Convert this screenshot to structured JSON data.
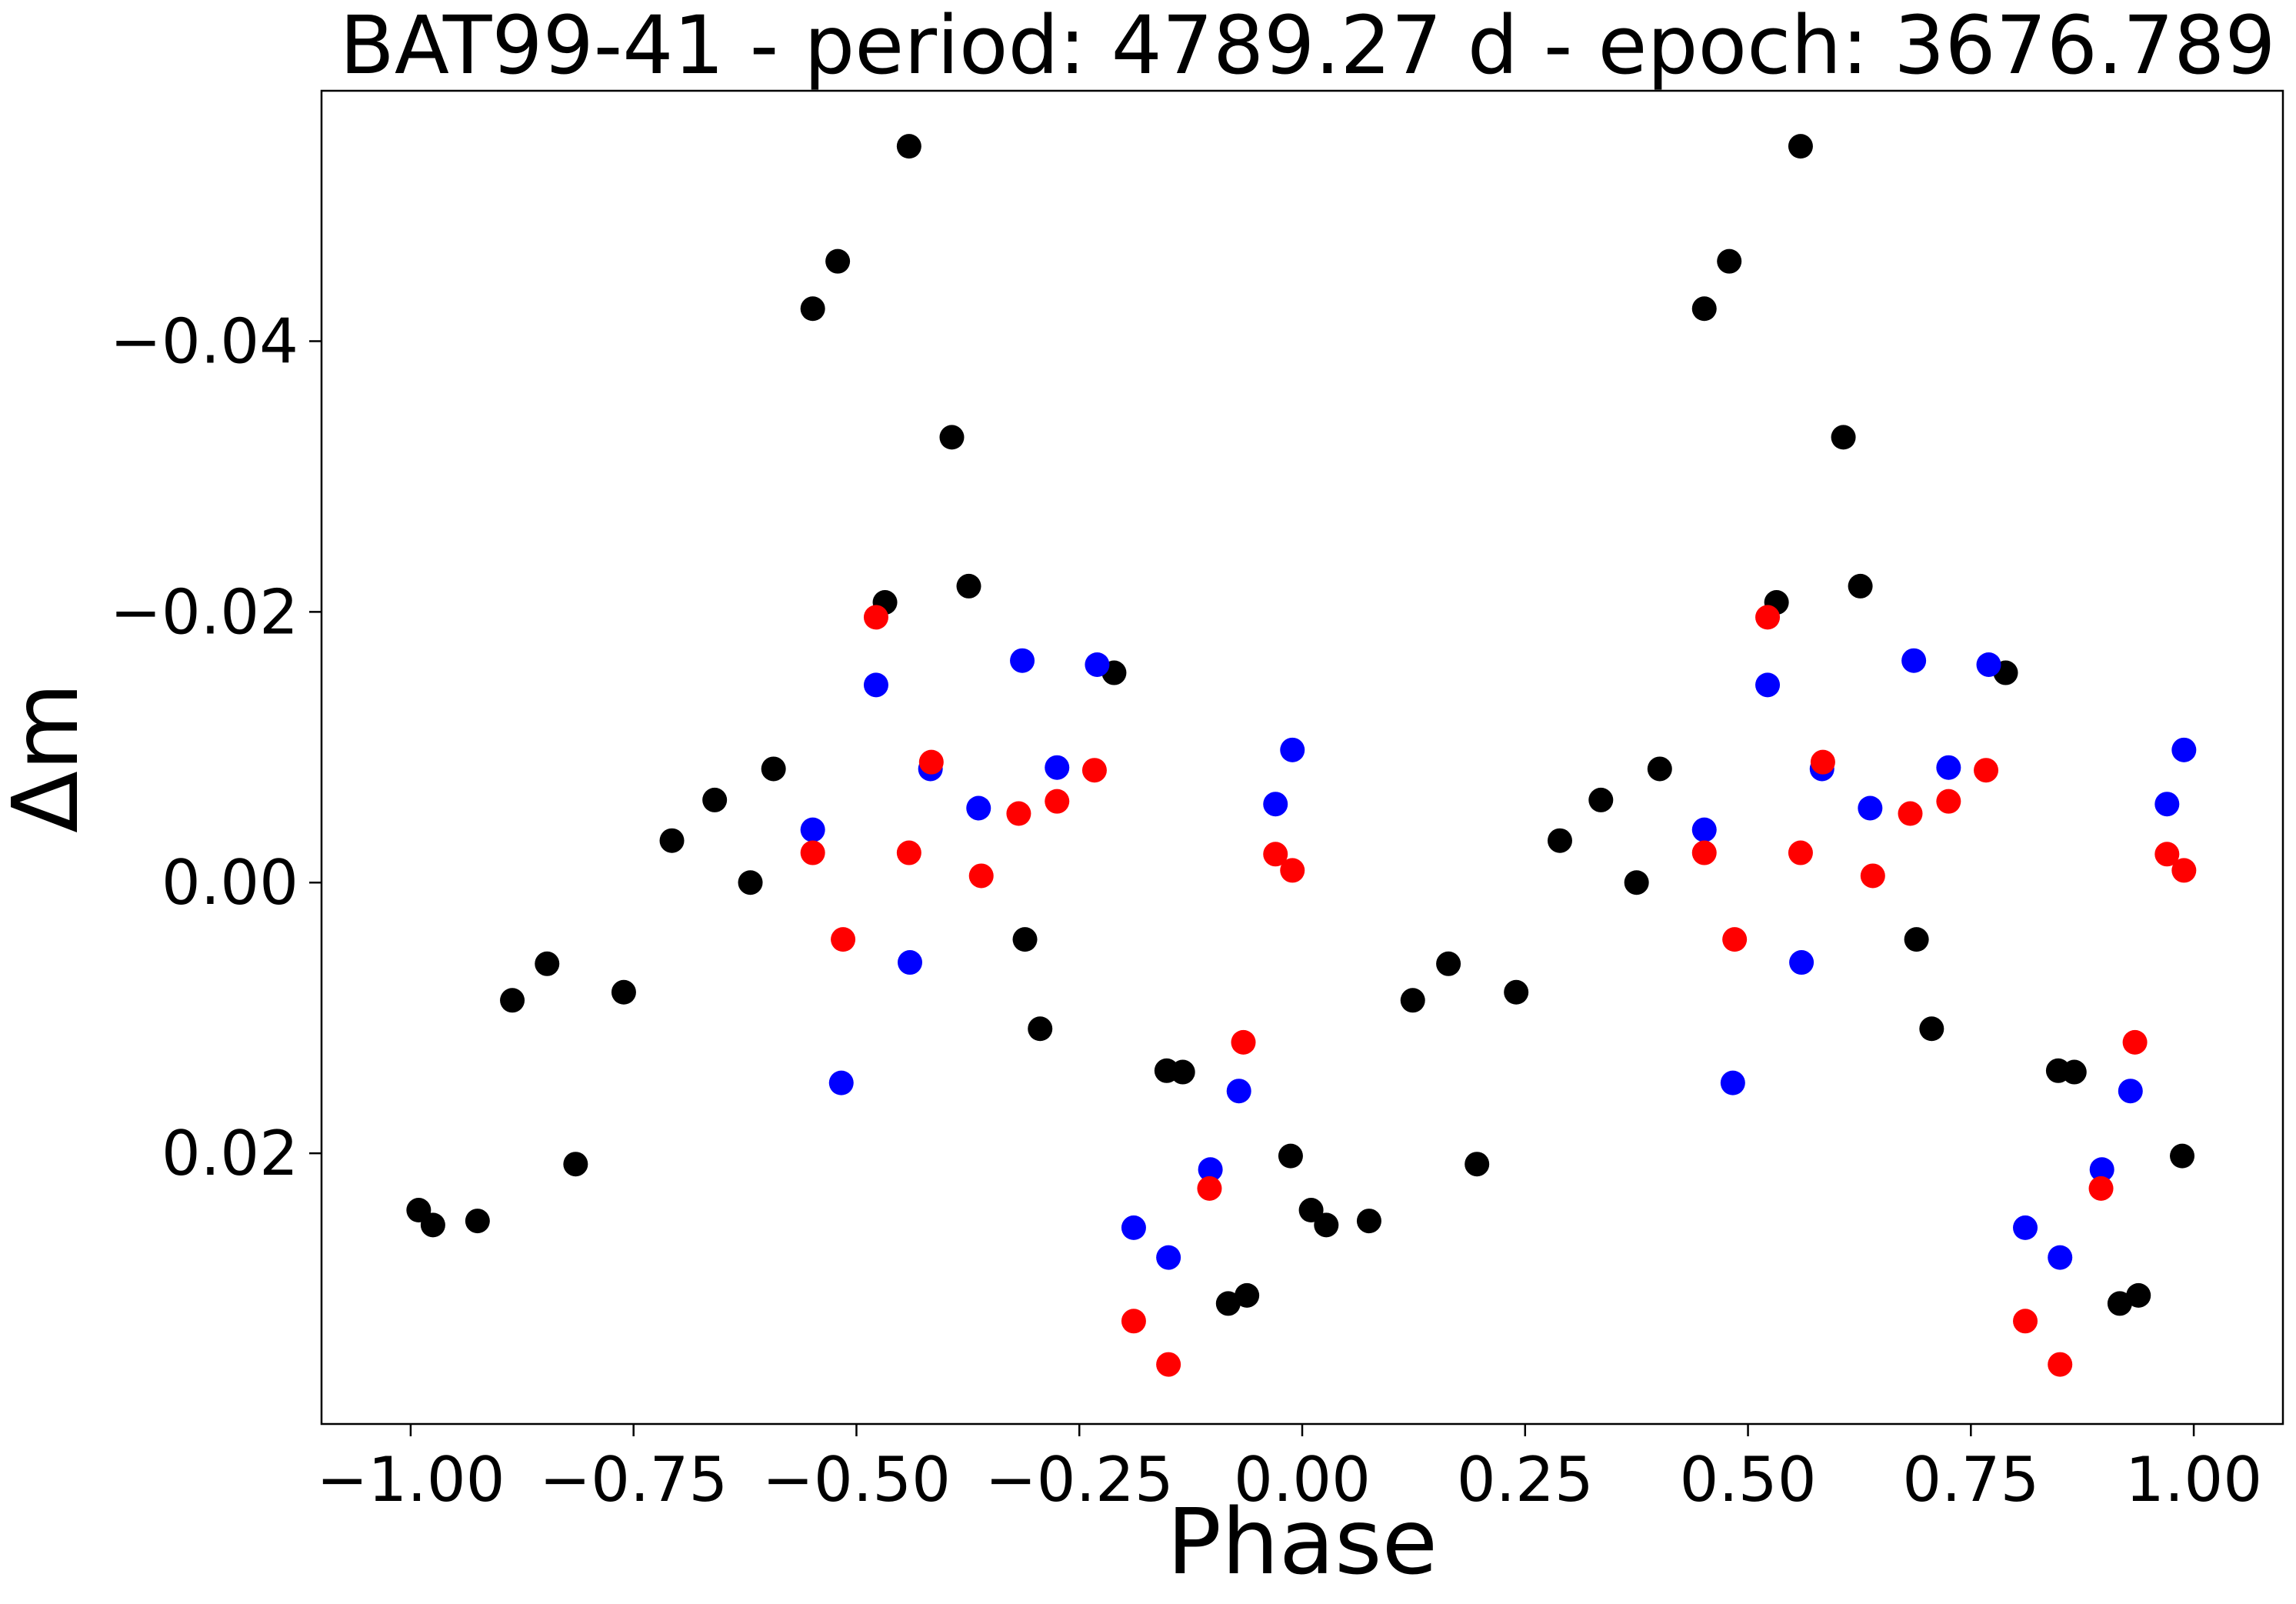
{
  "chart_data": {
    "type": "scatter",
    "title": "BAT99-41 - period: 4789.27 d - epoch: 3676.789",
    "xlabel": "Phase",
    "ylabel": "Δm",
    "xlim": [
      -1.1,
      1.1
    ],
    "ylim": [
      0.04,
      -0.0585
    ],
    "y_inverted": true,
    "grid": false,
    "legend": "none",
    "xticks": [
      -1.0,
      -0.75,
      -0.5,
      -0.25,
      0.0,
      0.25,
      0.5,
      0.75,
      1.0
    ],
    "xtick_labels": [
      "−1.00",
      "−0.75",
      "−0.50",
      "−0.25",
      "0.00",
      "0.25",
      "0.50",
      "0.75",
      "1.00"
    ],
    "yticks": [
      -0.04,
      -0.02,
      0.0,
      0.02
    ],
    "ytick_labels": [
      "−0.04",
      "−0.02",
      "0.00",
      "0.02"
    ],
    "series": [
      {
        "color": "#000000",
        "x": [
          -0.991,
          -0.975,
          -0.925,
          -0.886,
          -0.847,
          -0.815,
          -0.761,
          -0.707,
          -0.659,
          -0.619,
          -0.593,
          -0.549,
          -0.521,
          -0.468,
          -0.441,
          -0.393,
          -0.374,
          -0.311,
          -0.294,
          -0.211,
          -0.152,
          -0.134,
          -0.083,
          -0.062,
          -0.013,
          0.01,
          0.027,
          0.075,
          0.124,
          0.164,
          0.196,
          0.24,
          0.289,
          0.335,
          0.375,
          0.401,
          0.451,
          0.479,
          0.532,
          0.559,
          0.607,
          0.626,
          0.689,
          0.706,
          0.789,
          0.848,
          0.866,
          0.917,
          0.938,
          0.987
        ],
        "y": [
          0.0242,
          0.0253,
          0.025,
          0.0087,
          0.006,
          0.0208,
          0.0081,
          -0.0031,
          -0.0061,
          0.0,
          -0.0084,
          -0.0424,
          -0.0459,
          -0.0207,
          -0.0544,
          -0.0329,
          -0.0219,
          0.0042,
          0.0108,
          -0.0155,
          0.0139,
          0.014,
          0.0311,
          0.0305,
          0.0202,
          0.0242,
          0.0253,
          0.025,
          0.0087,
          0.006,
          0.0208,
          0.0081,
          -0.0031,
          -0.0061,
          0.0,
          -0.0084,
          -0.0424,
          -0.0459,
          -0.0207,
          -0.0544,
          -0.0329,
          -0.0219,
          0.0042,
          0.0108,
          -0.0155,
          0.0139,
          0.014,
          0.0311,
          0.0305,
          0.0202
        ]
      },
      {
        "color": "#0000ff",
        "x": [
          -0.549,
          -0.517,
          -0.478,
          -0.44,
          -0.417,
          -0.363,
          -0.314,
          -0.275,
          -0.23,
          -0.189,
          -0.15,
          -0.103,
          -0.071,
          -0.03,
          -0.011,
          0.451,
          0.483,
          0.522,
          0.56,
          0.583,
          0.637,
          0.686,
          0.725,
          0.77,
          0.811,
          0.85,
          0.897,
          0.929,
          0.97,
          0.989
        ],
        "y": [
          -0.0039,
          0.0148,
          -0.0146,
          0.0059,
          -0.0084,
          -0.0055,
          -0.0164,
          -0.0085,
          -0.0161,
          0.0255,
          0.0277,
          0.0212,
          0.0154,
          -0.0058,
          -0.0098,
          -0.0039,
          0.0148,
          -0.0146,
          0.0059,
          -0.0084,
          -0.0055,
          -0.0164,
          -0.0085,
          -0.0161,
          0.0255,
          0.0277,
          0.0212,
          0.0154,
          -0.0058,
          -0.0098
        ]
      },
      {
        "color": "#ff0000",
        "x": [
          -0.549,
          -0.515,
          -0.478,
          -0.441,
          -0.416,
          -0.36,
          -0.318,
          -0.275,
          -0.233,
          -0.189,
          -0.15,
          -0.104,
          -0.066,
          -0.03,
          -0.011,
          0.451,
          0.485,
          0.522,
          0.559,
          0.584,
          0.64,
          0.682,
          0.725,
          0.767,
          0.811,
          0.85,
          0.896,
          0.934,
          0.97,
          0.989
        ],
        "y": [
          -0.0022,
          0.0042,
          -0.0196,
          -0.0022,
          -0.0089,
          -0.0005,
          -0.0051,
          -0.006,
          -0.0083,
          0.0324,
          0.0356,
          0.0226,
          0.0118,
          -0.0021,
          -0.0009,
          -0.0022,
          0.0042,
          -0.0196,
          -0.0022,
          -0.0089,
          -0.0005,
          -0.0051,
          -0.006,
          -0.0083,
          0.0324,
          0.0356,
          0.0226,
          0.0118,
          -0.0021,
          -0.0009
        ]
      }
    ]
  }
}
